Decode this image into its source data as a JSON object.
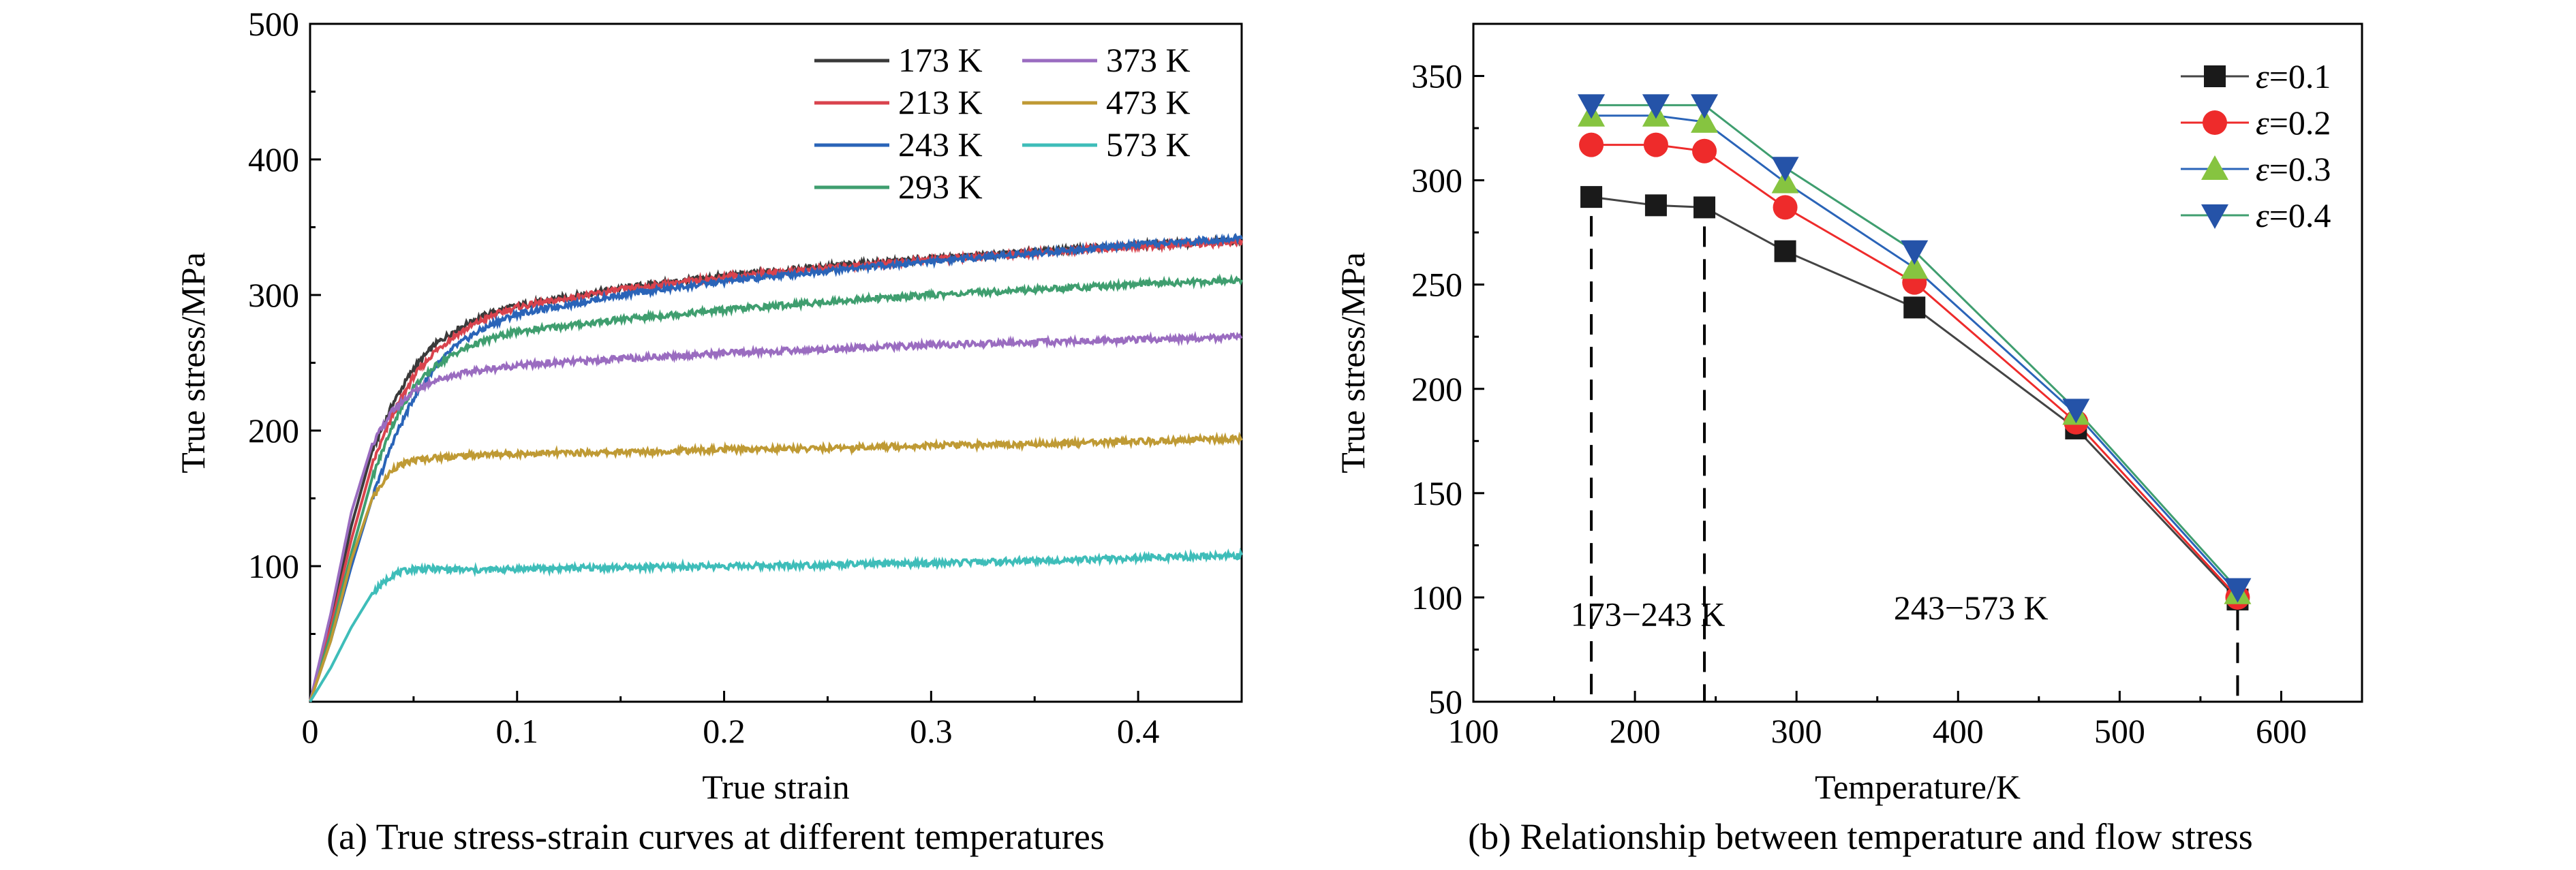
{
  "chart_data": [
    {
      "type": "line",
      "caption": "(a) True stress-strain curves at different temperatures",
      "xlabel": "True strain",
      "ylabel": "True stress/MPa",
      "xlim": [
        0,
        0.45
      ],
      "ylim": [
        0,
        500
      ],
      "xticks": [
        0,
        0.1,
        0.2,
        0.3,
        0.4
      ],
      "xtick_labels": [
        "0",
        "0.1",
        "0.2",
        "0.3",
        "0.4"
      ],
      "yticks": [
        100,
        200,
        300,
        400,
        500
      ],
      "ytick_labels": [
        "100",
        "200",
        "300",
        "400",
        "500"
      ],
      "grid": false,
      "legend_position": "top-right",
      "series": [
        {
          "name": "173 K",
          "color": "#3a3a3a",
          "points": [
            [
              0,
              0
            ],
            [
              0.01,
              60
            ],
            [
              0.02,
              130
            ],
            [
              0.03,
              185
            ],
            [
              0.04,
              220
            ],
            [
              0.05,
              246
            ],
            [
              0.06,
              263
            ],
            [
              0.07,
              274
            ],
            [
              0.08,
              282
            ],
            [
              0.09,
              288
            ],
            [
              0.1,
              292
            ],
            [
              0.15,
              305
            ],
            [
              0.2,
              314
            ],
            [
              0.25,
              321
            ],
            [
              0.3,
              327
            ],
            [
              0.35,
              332
            ],
            [
              0.4,
              337
            ],
            [
              0.45,
              340
            ]
          ]
        },
        {
          "name": "213 K",
          "color": "#d9434d",
          "points": [
            [
              0,
              0
            ],
            [
              0.01,
              55
            ],
            [
              0.02,
              120
            ],
            [
              0.03,
              175
            ],
            [
              0.04,
              212
            ],
            [
              0.05,
              240
            ],
            [
              0.06,
              258
            ],
            [
              0.07,
              270
            ],
            [
              0.08,
              279
            ],
            [
              0.09,
              286
            ],
            [
              0.1,
              291
            ],
            [
              0.15,
              304
            ],
            [
              0.2,
              313
            ],
            [
              0.25,
              320
            ],
            [
              0.3,
              326
            ],
            [
              0.35,
              331
            ],
            [
              0.4,
              336
            ],
            [
              0.45,
              339
            ]
          ]
        },
        {
          "name": "243 K",
          "color": "#2a64b8",
          "points": [
            [
              0,
              0
            ],
            [
              0.01,
              45
            ],
            [
              0.02,
              100
            ],
            [
              0.03,
              150
            ],
            [
              0.04,
              192
            ],
            [
              0.05,
              224
            ],
            [
              0.06,
              246
            ],
            [
              0.07,
              262
            ],
            [
              0.08,
              272
            ],
            [
              0.09,
              280
            ],
            [
              0.1,
              286
            ],
            [
              0.15,
              300
            ],
            [
              0.2,
              310
            ],
            [
              0.25,
              318
            ],
            [
              0.3,
              325
            ],
            [
              0.35,
              331
            ],
            [
              0.4,
              337
            ],
            [
              0.45,
              342
            ]
          ]
        },
        {
          "name": "293 K",
          "color": "#3f9e6f",
          "points": [
            [
              0,
              0
            ],
            [
              0.01,
              50
            ],
            [
              0.02,
              110
            ],
            [
              0.03,
              165
            ],
            [
              0.04,
              205
            ],
            [
              0.05,
              232
            ],
            [
              0.06,
              247
            ],
            [
              0.07,
              257
            ],
            [
              0.08,
              264
            ],
            [
              0.09,
              269
            ],
            [
              0.1,
              273
            ],
            [
              0.15,
              282
            ],
            [
              0.2,
              289
            ],
            [
              0.25,
              295
            ],
            [
              0.3,
              300
            ],
            [
              0.35,
              304
            ],
            [
              0.4,
              308
            ],
            [
              0.45,
              311
            ]
          ]
        },
        {
          "name": "373 K",
          "color": "#9a6cc0",
          "points": [
            [
              0,
              0
            ],
            [
              0.01,
              65
            ],
            [
              0.02,
              140
            ],
            [
              0.03,
              190
            ],
            [
              0.04,
              215
            ],
            [
              0.05,
              229
            ],
            [
              0.06,
              237
            ],
            [
              0.07,
              241
            ],
            [
              0.08,
              244
            ],
            [
              0.09,
              246
            ],
            [
              0.1,
              248
            ],
            [
              0.15,
              253
            ],
            [
              0.2,
              257
            ],
            [
              0.25,
              260
            ],
            [
              0.3,
              263
            ],
            [
              0.35,
              265
            ],
            [
              0.4,
              267
            ],
            [
              0.45,
              269
            ]
          ]
        },
        {
          "name": "473 K",
          "color": "#bf9a34",
          "points": [
            [
              0,
              0
            ],
            [
              0.01,
              45
            ],
            [
              0.02,
              105
            ],
            [
              0.03,
              150
            ],
            [
              0.04,
              172
            ],
            [
              0.05,
              178
            ],
            [
              0.06,
              180
            ],
            [
              0.08,
              182
            ],
            [
              0.1,
              183
            ],
            [
              0.15,
              184
            ],
            [
              0.2,
              186
            ],
            [
              0.25,
              187
            ],
            [
              0.3,
              189
            ],
            [
              0.35,
              190
            ],
            [
              0.4,
              192
            ],
            [
              0.45,
              194
            ]
          ]
        },
        {
          "name": "573 K",
          "color": "#3ebdb9",
          "points": [
            [
              0,
              0
            ],
            [
              0.01,
              25
            ],
            [
              0.02,
              55
            ],
            [
              0.03,
              80
            ],
            [
              0.04,
              94
            ],
            [
              0.05,
              98
            ],
            [
              0.06,
              98
            ],
            [
              0.08,
              97
            ],
            [
              0.1,
              98
            ],
            [
              0.15,
              99
            ],
            [
              0.2,
              100
            ],
            [
              0.25,
              101
            ],
            [
              0.3,
              102
            ],
            [
              0.35,
              104
            ],
            [
              0.4,
              106
            ],
            [
              0.45,
              108
            ]
          ]
        }
      ]
    },
    {
      "type": "line",
      "caption": "(b) Relationship between temperature and flow stress",
      "xlabel": "Temperature/K",
      "ylabel": "True stress/MPa",
      "xlim": [
        100,
        650
      ],
      "ylim": [
        50,
        375
      ],
      "xticks": [
        100,
        200,
        300,
        400,
        500,
        600
      ],
      "xtick_labels": [
        "100",
        "200",
        "300",
        "400",
        "500",
        "600"
      ],
      "yticks": [
        50,
        100,
        150,
        200,
        250,
        300,
        350
      ],
      "ytick_labels": [
        "50",
        "100",
        "150",
        "200",
        "250",
        "300",
        "350"
      ],
      "grid": false,
      "legend_position": "top-right",
      "x": [
        173,
        213,
        243,
        293,
        373,
        473,
        573
      ],
      "series": [
        {
          "name_prefix": "ε",
          "name_suffix": "=0.1",
          "color": "#1a1a1a",
          "line_color": "#444444",
          "marker": "square",
          "values": [
            292,
            288,
            287,
            266,
            239,
            181,
            99
          ]
        },
        {
          "name_prefix": "ε",
          "name_suffix": "=0.2",
          "color": "#ee2b2b",
          "line_color": "#ee2b2b",
          "marker": "circle",
          "values": [
            317,
            317,
            314,
            287,
            251,
            184,
            100
          ]
        },
        {
          "name_prefix": "ε",
          "name_suffix": "=0.3",
          "color": "#86c440",
          "line_color": "#2a64b8",
          "marker": "triangle-up",
          "values": [
            331,
            331,
            328,
            299,
            258,
            188,
            102
          ]
        },
        {
          "name_prefix": "ε",
          "name_suffix": "=0.4",
          "color": "#2553a8",
          "line_color": "#3f9e6f",
          "marker": "triangle-down",
          "values": [
            336,
            336,
            336,
            306,
            266,
            190,
            104
          ]
        }
      ],
      "dashed_markers_x": [
        173,
        243,
        573
      ],
      "annotations": [
        {
          "text": "173−243 K",
          "x": 208,
          "y": 92
        },
        {
          "text": "243−573 K",
          "x": 408,
          "y": 95
        }
      ]
    }
  ]
}
